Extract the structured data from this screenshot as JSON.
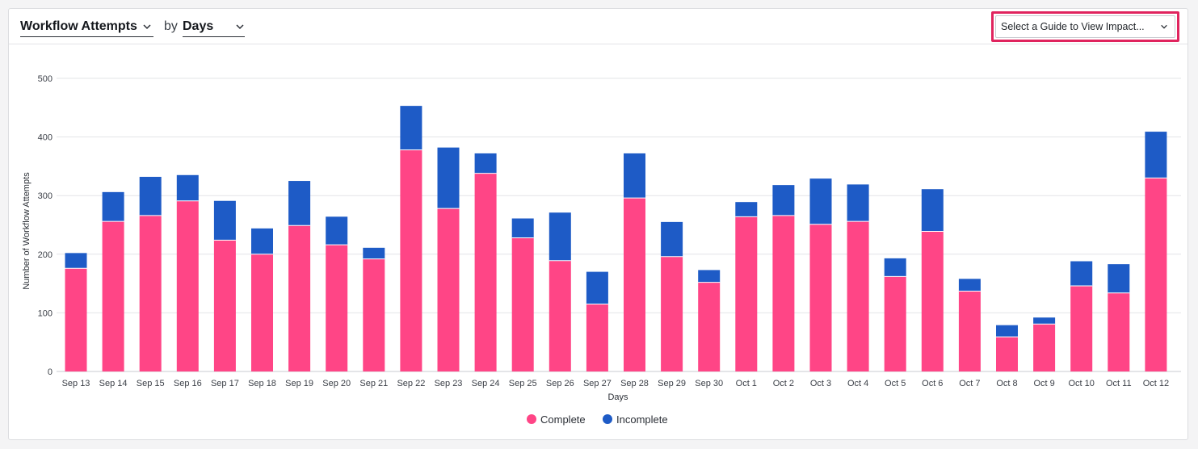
{
  "header": {
    "metric_label": "Workflow Attempts",
    "by_label": "by",
    "period_label": "Days",
    "guide_placeholder": "Select a Guide to View Impact..."
  },
  "colors": {
    "complete": "#ff4586",
    "incomplete": "#1e5bc6",
    "highlight": "#e0245e",
    "grid": "#e3e4e7"
  },
  "chart_data": {
    "type": "bar",
    "stacked": true,
    "xlabel": "Days",
    "ylabel": "Number of Workflow Attempts",
    "ylim": [
      0,
      500
    ],
    "yticks": [
      0,
      100,
      200,
      300,
      400,
      500
    ],
    "grid": true,
    "legend_position": "bottom-center",
    "categories": [
      "Sep 13",
      "Sep 14",
      "Sep 15",
      "Sep 16",
      "Sep 17",
      "Sep 18",
      "Sep 19",
      "Sep 20",
      "Sep 21",
      "Sep 22",
      "Sep 23",
      "Sep 24",
      "Sep 25",
      "Sep 26",
      "Sep 27",
      "Sep 28",
      "Sep 29",
      "Sep 30",
      "Oct 1",
      "Oct 2",
      "Oct 3",
      "Oct 4",
      "Oct 5",
      "Oct 6",
      "Oct 7",
      "Oct 8",
      "Oct 9",
      "Oct 10",
      "Oct 11",
      "Oct 12"
    ],
    "series": [
      {
        "name": "Complete",
        "values": [
          176,
          256,
          266,
          291,
          224,
          200,
          249,
          216,
          192,
          378,
          278,
          338,
          228,
          189,
          115,
          296,
          196,
          152,
          264,
          266,
          251,
          256,
          162,
          239,
          137,
          59,
          81,
          146,
          134,
          330
        ]
      },
      {
        "name": "Incomplete",
        "values": [
          26,
          50,
          66,
          44,
          67,
          44,
          76,
          48,
          19,
          75,
          104,
          34,
          33,
          82,
          55,
          76,
          59,
          21,
          25,
          52,
          78,
          63,
          31,
          72,
          21,
          20,
          11,
          42,
          49,
          79
        ]
      }
    ]
  }
}
